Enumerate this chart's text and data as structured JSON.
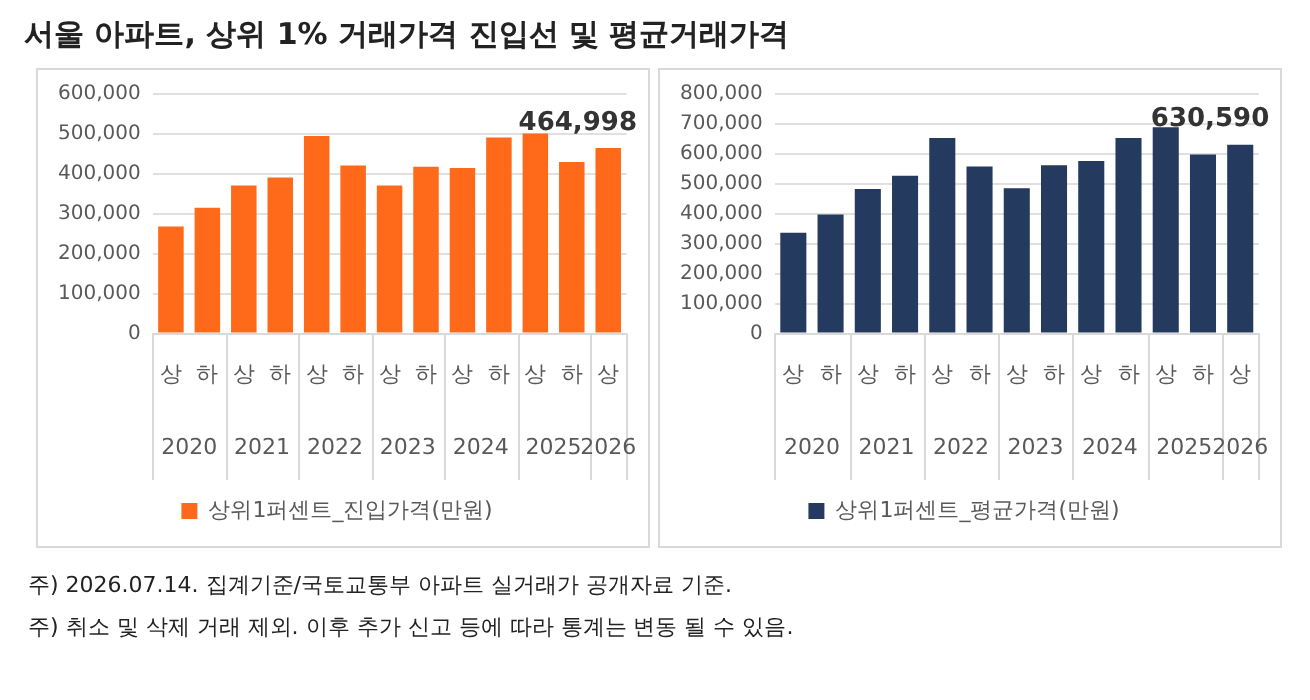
{
  "chart_data": [
    {
      "type": "bar",
      "title": "서울 아파트, 상위 1% 거래가격 진입선 및 평균거래가격",
      "categories": [
        "상",
        "하",
        "상",
        "하",
        "상",
        "하",
        "상",
        "하",
        "상",
        "하",
        "상",
        "하",
        "상"
      ],
      "series": [
        {
          "name": "상위1퍼센트_진입가격(만원)",
          "color": "#ff6a1a",
          "values": [
            268000,
            315000,
            371000,
            391000,
            495000,
            421000,
            371000,
            418000,
            415000,
            491000,
            501000,
            430000,
            464998
          ],
          "value_labels": [
            null,
            null,
            null,
            null,
            null,
            null,
            null,
            null,
            null,
            null,
            null,
            null,
            "464,998"
          ]
        }
      ],
      "ylim": [
        0,
        600000
      ],
      "yticks": [
        {
          "value": 0,
          "label": "0"
        },
        {
          "value": 100000,
          "label": "100,000"
        },
        {
          "value": 200000,
          "label": "200,000"
        },
        {
          "value": 300000,
          "label": "300,000"
        },
        {
          "value": 400000,
          "label": "400,000"
        },
        {
          "value": 500000,
          "label": "500,000"
        },
        {
          "value": 600000,
          "label": "600,000"
        }
      ],
      "grid": "y",
      "legend": "bottom",
      "annotations": [
        "2020",
        "2021",
        "2022",
        "2023",
        "2024",
        "2025",
        "2026",
        "주) 2026.07.14. 집계기준/국토교통부 아파트 실거래가 공개자료 기준.",
        "주) 취소 및 삭제 거래 제외. 이후 추가 신고 등에 따라 통계는 변동 될 수 있음."
      ]
    },
    {
      "type": "bar",
      "categories": [
        "상",
        "하",
        "상",
        "하",
        "상",
        "하",
        "상",
        "하",
        "상",
        "하",
        "상",
        "하",
        "상"
      ],
      "series": [
        {
          "name": "상위1퍼센트_평균가격(만원)",
          "color": "#243a5e",
          "values": [
            337000,
            398000,
            483000,
            527000,
            653000,
            558000,
            485000,
            562000,
            576000,
            653000,
            689000,
            598000,
            630590
          ],
          "value_labels": [
            null,
            null,
            null,
            null,
            null,
            null,
            null,
            null,
            null,
            null,
            null,
            null,
            "630,590"
          ]
        }
      ],
      "ylim": [
        0,
        800000
      ],
      "yticks": [
        {
          "value": 0,
          "label": "0"
        },
        {
          "value": 100000,
          "label": "100,000"
        },
        {
          "value": 200000,
          "label": "200,000"
        },
        {
          "value": 300000,
          "label": "300,000"
        },
        {
          "value": 400000,
          "label": "400,000"
        },
        {
          "value": 500000,
          "label": "500,000"
        },
        {
          "value": 600000,
          "label": "600,000"
        },
        {
          "value": 700000,
          "label": "700,000"
        },
        {
          "value": 800000,
          "label": "800,000"
        }
      ],
      "grid": "y",
      "legend": "bottom",
      "annotations": [
        "2020",
        "2021",
        "2022",
        "2023",
        "2024",
        "2025",
        "2026"
      ]
    }
  ]
}
